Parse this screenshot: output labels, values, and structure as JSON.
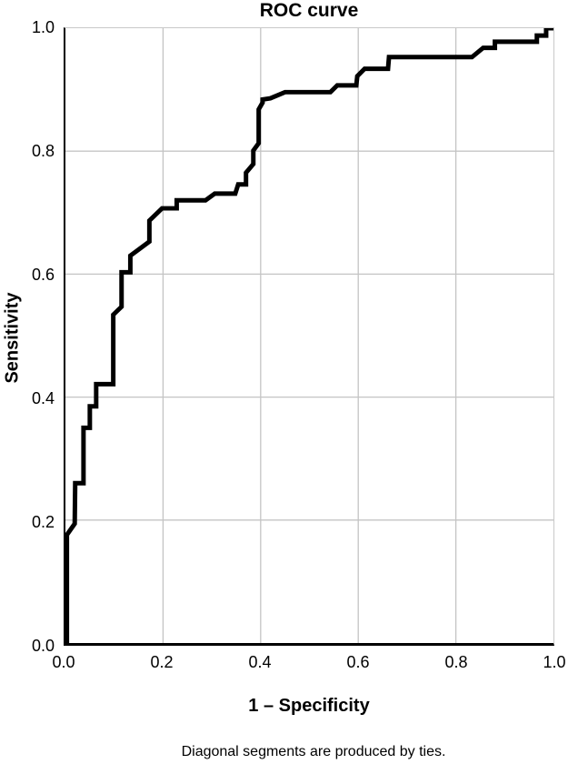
{
  "title": "ROC curve",
  "y_axis": {
    "label": "Sensitivity",
    "ticks": [
      "0.0",
      "0.2",
      "0.4",
      "0.6",
      "0.8",
      "1.0"
    ]
  },
  "x_axis": {
    "label": "1 – Specificity",
    "ticks": [
      "0.0",
      "0.2",
      "0.4",
      "0.6",
      "0.8",
      "1.0"
    ]
  },
  "footnote": "Diagonal segments are produced by ties.",
  "colors": {
    "curve": "#000000",
    "grid": "#c4c4c4",
    "axis": "#000000",
    "background": "#ffffff"
  },
  "chart_data": {
    "type": "line",
    "title": "ROC curve",
    "xlabel": "1 – Specificity",
    "ylabel": "Sensitivity",
    "xlim": [
      0.0,
      1.0
    ],
    "ylim": [
      0.0,
      1.0
    ],
    "x_ticks": [
      0.0,
      0.2,
      0.4,
      0.6,
      0.8,
      1.0
    ],
    "y_ticks": [
      0.0,
      0.2,
      0.4,
      0.6,
      0.8,
      1.0
    ],
    "grid": true,
    "legend": "none",
    "annotations": [
      "Diagonal segments are produced by ties."
    ],
    "series": [
      {
        "name": "ROC curve",
        "line_width": 5,
        "points": [
          [
            0.003,
            0.0
          ],
          [
            0.003,
            0.176
          ],
          [
            0.019,
            0.194
          ],
          [
            0.02,
            0.26
          ],
          [
            0.037,
            0.26
          ],
          [
            0.037,
            0.35
          ],
          [
            0.05,
            0.35
          ],
          [
            0.05,
            0.385
          ],
          [
            0.063,
            0.385
          ],
          [
            0.063,
            0.421
          ],
          [
            0.098,
            0.421
          ],
          [
            0.098,
            0.534
          ],
          [
            0.115,
            0.547
          ],
          [
            0.115,
            0.603
          ],
          [
            0.133,
            0.603
          ],
          [
            0.133,
            0.63
          ],
          [
            0.172,
            0.653
          ],
          [
            0.172,
            0.687
          ],
          [
            0.198,
            0.707
          ],
          [
            0.228,
            0.707
          ],
          [
            0.228,
            0.72
          ],
          [
            0.287,
            0.72
          ],
          [
            0.306,
            0.731
          ],
          [
            0.348,
            0.731
          ],
          [
            0.354,
            0.746
          ],
          [
            0.37,
            0.746
          ],
          [
            0.37,
            0.765
          ],
          [
            0.385,
            0.779
          ],
          [
            0.385,
            0.801
          ],
          [
            0.396,
            0.813
          ],
          [
            0.396,
            0.868
          ],
          [
            0.404,
            0.879
          ],
          [
            0.404,
            0.884
          ],
          [
            0.42,
            0.886
          ],
          [
            0.45,
            0.896
          ],
          [
            0.543,
            0.896
          ],
          [
            0.557,
            0.907
          ],
          [
            0.596,
            0.907
          ],
          [
            0.598,
            0.922
          ],
          [
            0.613,
            0.934
          ],
          [
            0.661,
            0.934
          ],
          [
            0.663,
            0.953
          ],
          [
            0.833,
            0.953
          ],
          [
            0.856,
            0.968
          ],
          [
            0.88,
            0.968
          ],
          [
            0.88,
            0.978
          ],
          [
            0.966,
            0.978
          ],
          [
            0.966,
            0.988
          ],
          [
            0.985,
            0.988
          ],
          [
            0.985,
            1.0
          ],
          [
            1.0,
            1.0
          ]
        ]
      }
    ]
  }
}
